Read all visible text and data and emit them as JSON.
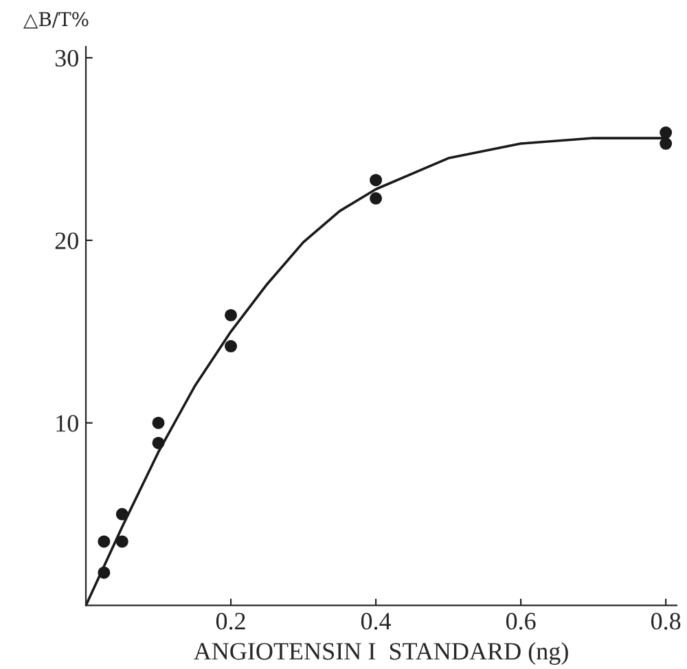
{
  "chart_data": {
    "type": "scatter",
    "xlabel": "ANGIOTENSIN I  STANDARD (ng)",
    "ylabel": "△B/T%",
    "xlim": [
      0,
      0.815
    ],
    "ylim": [
      0,
      30.6
    ],
    "xticks": [
      0.2,
      0.4,
      0.6,
      0.8
    ],
    "yticks": [
      10,
      20,
      30
    ],
    "grid": false,
    "legend": false,
    "series": [
      {
        "color": "#1a1a1a",
        "marker": "circle",
        "x": [
          0.025,
          0.025,
          0.05,
          0.05,
          0.1,
          0.1,
          0.2,
          0.2,
          0.4,
          0.4,
          0.8,
          0.8
        ],
        "values": [
          3.5,
          1.8,
          5.0,
          3.5,
          10.0,
          8.9,
          15.9,
          14.2,
          23.3,
          22.3,
          25.9,
          25.3
        ]
      },
      {
        "type": "line",
        "color": "#1a1a1a",
        "marker": "none",
        "line_style": "solid",
        "x": [
          0,
          0.05,
          0.1,
          0.15,
          0.2,
          0.25,
          0.3,
          0.35,
          0.4,
          0.5,
          0.6,
          0.7,
          0.8
        ],
        "values": [
          0,
          4.3,
          8.4,
          12.0,
          15.0,
          17.6,
          19.9,
          21.6,
          22.8,
          24.5,
          25.3,
          25.6,
          25.6
        ]
      }
    ]
  }
}
